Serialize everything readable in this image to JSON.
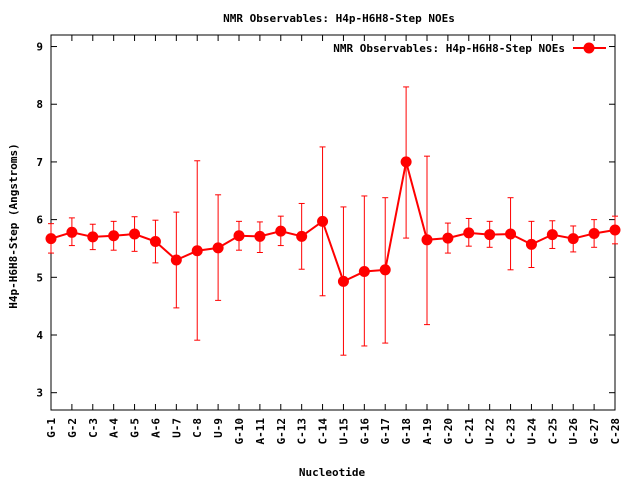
{
  "chart_data": {
    "type": "line",
    "title": "NMR Observables: H4p-H6H8-Step NOEs",
    "xlabel": "Nucleotide",
    "ylabel": "H4p-H6H8-Step (Angstroms)",
    "ylim": [
      2.7,
      9.2
    ],
    "yticks": [
      3,
      4,
      5,
      6,
      7,
      8,
      9
    ],
    "grid": false,
    "legend_position": "top-right",
    "categories": [
      "G-1",
      "G-2",
      "C-3",
      "A-4",
      "G-5",
      "A-6",
      "U-7",
      "C-8",
      "U-9",
      "G-10",
      "A-11",
      "G-12",
      "C-13",
      "C-14",
      "U-15",
      "G-16",
      "G-17",
      "G-18",
      "A-19",
      "G-20",
      "C-21",
      "U-22",
      "C-23",
      "U-24",
      "C-25",
      "U-26",
      "G-27",
      "C-28"
    ],
    "series": [
      {
        "name": "NMR Observables: H4p-H6H8-Step NOEs",
        "color": "#ff0000",
        "values": [
          5.67,
          5.78,
          5.7,
          5.72,
          5.75,
          5.62,
          5.3,
          5.46,
          5.51,
          5.72,
          5.71,
          5.8,
          5.71,
          5.97,
          4.93,
          5.1,
          5.13,
          7.0,
          5.65,
          5.68,
          5.77,
          5.74,
          5.75,
          5.57,
          5.74,
          5.67,
          5.76,
          5.82
        ],
        "err_low": [
          5.42,
          5.55,
          5.48,
          5.47,
          5.45,
          5.25,
          4.47,
          3.91,
          4.6,
          5.47,
          5.43,
          5.55,
          5.14,
          4.68,
          3.65,
          3.81,
          3.86,
          5.68,
          4.18,
          5.42,
          5.54,
          5.52,
          5.13,
          5.17,
          5.5,
          5.44,
          5.52,
          5.58
        ],
        "err_high": [
          5.93,
          6.03,
          5.92,
          5.97,
          6.05,
          5.99,
          6.13,
          7.02,
          6.43,
          5.97,
          5.96,
          6.06,
          6.28,
          7.26,
          6.22,
          6.41,
          6.38,
          8.3,
          7.1,
          5.94,
          6.02,
          5.97,
          6.38,
          5.97,
          5.98,
          5.89,
          6.0,
          6.06
        ]
      }
    ]
  }
}
